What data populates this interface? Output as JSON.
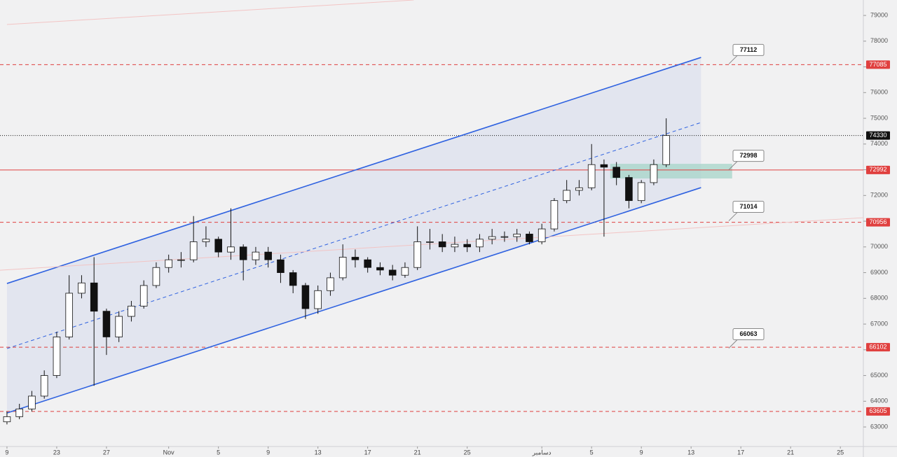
{
  "chart_data": {
    "type": "candlestick",
    "up_color": "#ffffff",
    "down_color": "#111111",
    "wick_color": "#111111",
    "x": [
      0,
      1,
      2,
      3,
      4,
      5,
      6,
      7,
      8,
      9,
      10,
      11,
      12,
      13,
      14,
      15,
      16,
      17,
      18,
      19,
      20,
      21,
      22,
      23,
      24,
      25,
      26,
      27,
      28,
      29,
      30,
      31,
      32,
      33,
      34,
      35,
      36,
      37,
      38,
      39,
      40,
      41,
      42,
      43,
      44,
      45,
      46,
      47,
      48,
      49,
      50,
      51,
      52,
      53
    ],
    "open": [
      63200,
      63400,
      63700,
      64200,
      65000,
      66500,
      68200,
      68600,
      67500,
      66500,
      67300,
      67700,
      68500,
      69200,
      69500,
      69500,
      70200,
      70300,
      69800,
      70000,
      69500,
      69800,
      69500,
      69000,
      68500,
      67600,
      68300,
      68800,
      69600,
      69500,
      69200,
      69100,
      68900,
      69200,
      70200,
      70200,
      70000,
      70100,
      70000,
      70300,
      70400,
      70400,
      70500,
      70200,
      70700,
      71800,
      72200,
      72300,
      73200,
      73100,
      72700,
      71800,
      72500,
      73200
    ],
    "high": [
      63600,
      63900,
      64400,
      65200,
      66700,
      68900,
      68900,
      69600,
      67600,
      67500,
      67900,
      68700,
      69400,
      69700,
      69800,
      71200,
      70800,
      70400,
      71500,
      70100,
      70000,
      70000,
      69700,
      69100,
      68600,
      68500,
      69000,
      70100,
      69900,
      69600,
      69400,
      69300,
      69400,
      70800,
      70700,
      70500,
      70400,
      70300,
      70500,
      70700,
      70600,
      70700,
      70600,
      70900,
      71900,
      72600,
      72600,
      74000,
      73400,
      73300,
      72800,
      72600,
      73400,
      75000
    ],
    "low": [
      63100,
      63300,
      63600,
      64100,
      64900,
      66400,
      68000,
      64600,
      65800,
      66300,
      67100,
      67600,
      68400,
      69000,
      69200,
      69400,
      70000,
      69600,
      69500,
      68700,
      69300,
      69200,
      68600,
      68200,
      67200,
      67400,
      68100,
      68700,
      69200,
      69000,
      68900,
      68700,
      68800,
      69100,
      69900,
      69800,
      69800,
      69800,
      69800,
      70100,
      70200,
      70200,
      70100,
      70100,
      70600,
      71700,
      72000,
      72200,
      70400,
      72400,
      71500,
      71700,
      72400,
      73100
    ],
    "close": [
      63400,
      63700,
      64200,
      65000,
      66500,
      68200,
      68600,
      67500,
      66500,
      67300,
      67700,
      68500,
      69200,
      69500,
      69500,
      70200,
      70300,
      69800,
      70000,
      69500,
      69800,
      69500,
      69000,
      68500,
      67600,
      68300,
      68800,
      69600,
      69500,
      69200,
      69100,
      68900,
      69200,
      70200,
      70200,
      70000,
      70100,
      70000,
      70300,
      70400,
      70400,
      70500,
      70200,
      70700,
      71800,
      72200,
      72300,
      73200,
      73100,
      72700,
      71800,
      72500,
      73200,
      74330
    ],
    "xlim": [
      -0.56,
      68.85
    ],
    "xticks": [
      {
        "value": 0,
        "label": "9"
      },
      {
        "value": 4,
        "label": "23"
      },
      {
        "value": 8,
        "label": "27"
      },
      {
        "value": 13,
        "label": "Nov"
      },
      {
        "value": 17,
        "label": "5"
      },
      {
        "value": 21,
        "label": "9"
      },
      {
        "value": 25,
        "label": "13"
      },
      {
        "value": 29,
        "label": "17"
      },
      {
        "value": 33,
        "label": "21"
      },
      {
        "value": 37,
        "label": "25"
      },
      {
        "value": 43,
        "label": "دسامبر"
      },
      {
        "value": 47,
        "label": "5"
      },
      {
        "value": 51,
        "label": "9"
      },
      {
        "value": 55,
        "label": "13"
      },
      {
        "value": 59,
        "label": "17"
      },
      {
        "value": 63,
        "label": "21"
      },
      {
        "value": 67,
        "label": "25"
      }
    ],
    "ylim": [
      62240,
      79600
    ],
    "yticks": [
      63000,
      64000,
      65000,
      66000,
      67000,
      68000,
      69000,
      70000,
      71000,
      72000,
      73000,
      74000,
      75000,
      76000,
      77000,
      78000,
      79000
    ],
    "levels": [
      {
        "value": 77085,
        "color": "#e0403f",
        "style": "dashed"
      },
      {
        "value": 72992,
        "color": "#e0403f",
        "style": "solid"
      },
      {
        "value": 70956,
        "color": "#e0403f",
        "style": "dashed"
      },
      {
        "value": 66102,
        "color": "#e0403f",
        "style": "dashed"
      },
      {
        "value": 63605,
        "color": "#e0403f",
        "style": "dashed"
      },
      {
        "value": 74330,
        "color": "#111111",
        "style": "dotted"
      }
    ],
    "lines": [
      {
        "x": [
          0,
          55.8
        ],
        "y": [
          68578,
          77367
        ],
        "color": "#2f62e0",
        "style": "solid"
      },
      {
        "x": [
          0,
          55.8
        ],
        "y": [
          63544,
          72306
        ],
        "color": "#2f62e0",
        "style": "solid"
      },
      {
        "x": [
          0,
          55.8
        ],
        "y": [
          66048,
          74837
        ],
        "color": "#2f62e0",
        "style": "dashed"
      },
      {
        "x": [
          -0.56,
          68.85
        ],
        "y": [
          69095,
          71136
        ],
        "color": "#f2c4c4",
        "style": "solid"
      },
      {
        "x": [
          0,
          32.7
        ],
        "y": [
          78646,
          79599
        ],
        "color": "#f2c4c4",
        "style": "solid"
      }
    ],
    "zone": {
      "x": [
        48.5,
        58.3
      ],
      "y": [
        72660,
        73231
      ],
      "color": "#a6d4c8"
    },
    "callouts": [
      77112,
      72998,
      71014,
      66063
    ]
  }
}
